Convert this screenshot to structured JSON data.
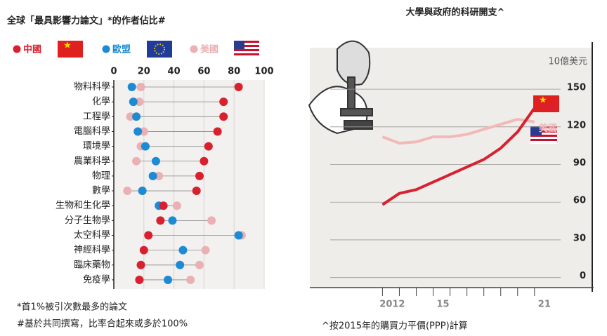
{
  "chart_data": [
    {
      "type": "dot",
      "title": "全球「最具影響力論文」*的作者佔比#",
      "categories": [
        "物料科學",
        "化學",
        "工程學",
        "電腦科學",
        "環境學",
        "農業科學",
        "物理",
        "數學",
        "生物和生化學",
        "分子生物學",
        "太空科學",
        "神經科學",
        "臨床藥物",
        "免疫學"
      ],
      "series": [
        {
          "name": "美國",
          "color": "#eab0b3",
          "values": [
            18,
            17,
            11,
            20,
            18,
            15,
            30,
            9,
            42,
            65,
            85,
            61,
            57,
            51
          ]
        },
        {
          "name": "歐盟",
          "color": "#1c8ad4",
          "values": [
            12,
            13,
            15,
            16,
            21,
            28,
            26,
            19,
            30,
            39,
            83,
            46,
            44,
            36
          ]
        },
        {
          "name": "中國",
          "color": "#d8202f",
          "values": [
            83,
            73,
            73,
            69,
            63,
            60,
            57,
            55,
            33,
            31,
            23,
            20,
            18,
            17
          ]
        }
      ],
      "xlim": [
        0,
        100
      ],
      "xticks": [
        0,
        20,
        40,
        60,
        80,
        100
      ],
      "grid": true,
      "footnotes": [
        "*首1%被引次數最多的論文",
        "#基於共同撰寫，比率合起來或多於100%"
      ]
    },
    {
      "type": "line",
      "title": "大學與政府的科研開支^",
      "unit_label": "10億美元",
      "x": [
        2012,
        2013,
        2014,
        2015,
        2016,
        2017,
        2018,
        2019,
        2020,
        2021
      ],
      "series": [
        {
          "name": "美國",
          "color": "#f2b9b9",
          "values": [
            112,
            107,
            108,
            112,
            112,
            114,
            118,
            122,
            126,
            124
          ]
        },
        {
          "name": "中國",
          "color": "#d8202f",
          "values": [
            58,
            67,
            70,
            76,
            82,
            88,
            94,
            103,
            116,
            135
          ]
        }
      ],
      "xlim": [
        2007.7,
        2024.5
      ],
      "xticks": [
        2012,
        {
          "value": 2015,
          "label": "15"
        },
        {
          "value": 2021,
          "label": "21"
        }
      ],
      "xminor": [
        2013,
        2014,
        2016,
        2017,
        2018,
        2019,
        2020
      ],
      "ylim": [
        -8,
        183
      ],
      "yticks": [
        0,
        30,
        60,
        90,
        120,
        150
      ],
      "grid": true,
      "footnote": "^按2015年的購買力平價(PPP)計算"
    }
  ]
}
